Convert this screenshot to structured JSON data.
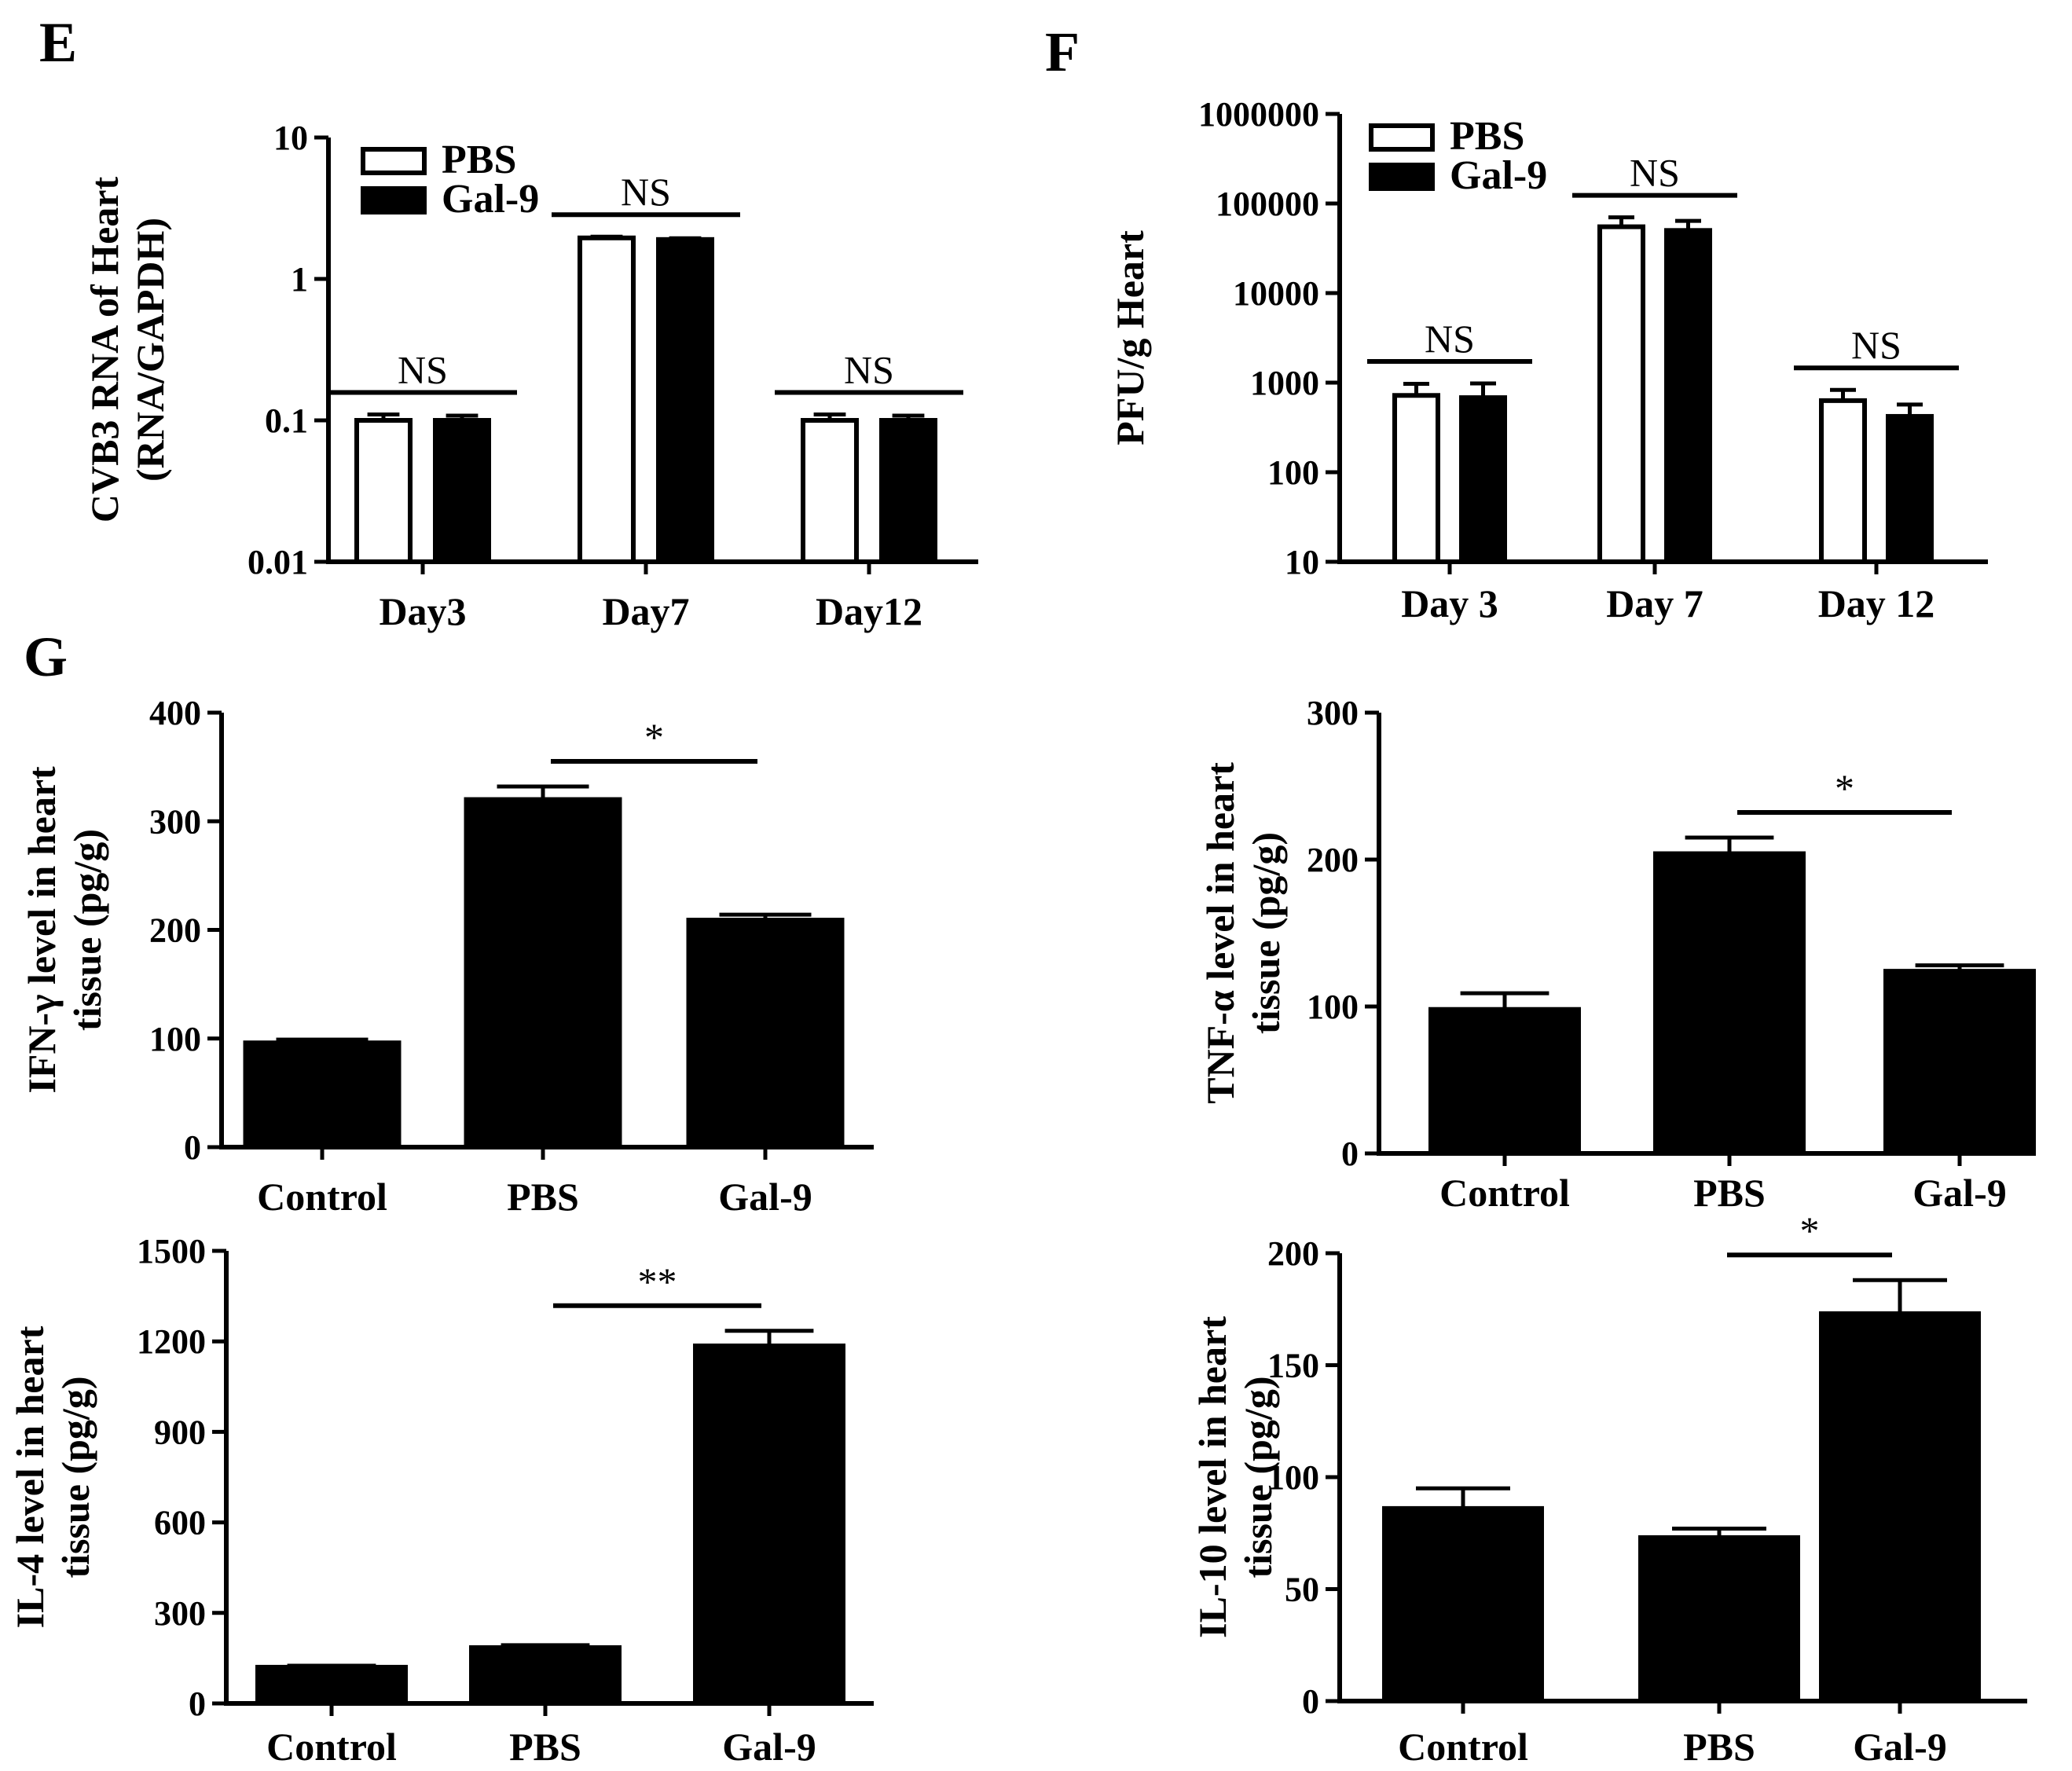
{
  "panel_labels": {
    "E": "E",
    "F": "F",
    "G": "G"
  },
  "chart_data": [
    {
      "id": "E",
      "type": "bar",
      "scale": "log",
      "ylabel_lines": [
        "CVB3 RNA of Heart",
        "(RNA/GAPDH)"
      ],
      "ylim": [
        0.01,
        10
      ],
      "yticks": [
        0.01,
        0.1,
        1,
        10
      ],
      "ytick_labels": [
        "0.01",
        "0.1",
        "1",
        "10"
      ],
      "categories": [
        "Day3",
        "Day7",
        "Day12"
      ],
      "series": [
        {
          "name": "PBS",
          "fill": "#ffffff",
          "values": [
            0.1,
            1.95,
            0.1
          ],
          "errors": [
            0.01,
            0.04,
            0.01
          ]
        },
        {
          "name": "Gal-9",
          "fill": "#000000",
          "values": [
            0.1,
            1.9,
            0.1
          ],
          "errors": [
            0.008,
            0.04,
            0.008
          ]
        }
      ],
      "significance": [
        {
          "label": "NS",
          "category": 0
        },
        {
          "label": "NS",
          "category": 1
        },
        {
          "label": "NS",
          "category": 2
        }
      ],
      "legend": [
        "PBS",
        "Gal-9"
      ]
    },
    {
      "id": "F",
      "type": "bar",
      "scale": "log",
      "ylabel_lines": [
        "PFU/g  Heart"
      ],
      "ylim": [
        10,
        1000000
      ],
      "yticks": [
        10,
        100,
        1000,
        10000,
        100000,
        1000000
      ],
      "ytick_labels": [
        "10",
        "100",
        "1000",
        "10000",
        "100000",
        "1000000"
      ],
      "categories": [
        "Day 3",
        "Day 7",
        "Day 12"
      ],
      "series": [
        {
          "name": "PBS",
          "fill": "#ffffff",
          "values": [
            720,
            55000,
            630
          ],
          "errors": [
            250,
            15000,
            200
          ]
        },
        {
          "name": "Gal-9",
          "fill": "#000000",
          "values": [
            680,
            50000,
            420
          ],
          "errors": [
            300,
            14000,
            150
          ]
        }
      ],
      "significance": [
        {
          "label": "NS",
          "category": 0
        },
        {
          "label": "NS",
          "category": 1
        },
        {
          "label": "NS",
          "category": 2
        }
      ],
      "legend": [
        "PBS",
        "Gal-9"
      ]
    },
    {
      "id": "G1",
      "type": "bar",
      "scale": "linear",
      "ylabel_lines": [
        "IFN-γ  level in heart",
        "tissue (pg/g)"
      ],
      "ylim": [
        0,
        400
      ],
      "yticks": [
        0,
        100,
        200,
        300,
        400
      ],
      "ytick_labels": [
        "0",
        "100",
        "200",
        "300",
        "400"
      ],
      "categories": [
        "Control",
        "PBS",
        "Gal-9"
      ],
      "series": [
        {
          "name": "",
          "fill": "#000000",
          "values": [
            96,
            320,
            209
          ],
          "errors": [
            3,
            12,
            5
          ]
        }
      ],
      "significance": [
        {
          "label": "*",
          "from": 1,
          "to": 2
        }
      ]
    },
    {
      "id": "G2",
      "type": "bar",
      "scale": "linear",
      "ylabel_lines": [
        "TNF-α  level in heart",
        "tissue (pg/g)"
      ],
      "ylim": [
        0,
        300
      ],
      "yticks": [
        0,
        100,
        200,
        300
      ],
      "ytick_labels": [
        "0",
        "100",
        "200",
        "300"
      ],
      "categories": [
        "Control",
        "PBS",
        "Gal-9"
      ],
      "series": [
        {
          "name": "",
          "fill": "#000000",
          "values": [
            98,
            204,
            124
          ],
          "errors": [
            11,
            11,
            4
          ]
        }
      ],
      "significance": [
        {
          "label": "*",
          "from": 1,
          "to": 2
        }
      ]
    },
    {
      "id": "G3",
      "type": "bar",
      "scale": "linear",
      "ylabel_lines": [
        "IL-4 level in heart",
        "tissue (pg/g)"
      ],
      "ylim": [
        0,
        1500
      ],
      "yticks": [
        0,
        300,
        600,
        900,
        1200,
        1500
      ],
      "ytick_labels": [
        "0",
        "300",
        "600",
        "900",
        "1200",
        "1500"
      ],
      "categories": [
        "Control",
        "PBS",
        "Gal-9"
      ],
      "series": [
        {
          "name": "",
          "fill": "#000000",
          "values": [
            120,
            185,
            1185
          ],
          "errors": [
            5,
            8,
            50
          ]
        }
      ],
      "significance": [
        {
          "label": "**",
          "from": 1,
          "to": 2
        }
      ]
    },
    {
      "id": "G4",
      "type": "bar",
      "scale": "linear",
      "ylabel_lines": [
        "IL-10 level in heart",
        "tissue (pg/g)"
      ],
      "ylim": [
        0,
        200
      ],
      "yticks": [
        0,
        50,
        100,
        150,
        200
      ],
      "ytick_labels": [
        "0",
        "50",
        "100",
        "150",
        "200"
      ],
      "categories": [
        "Control",
        "PBS",
        "Gal-9"
      ],
      "series": [
        {
          "name": "",
          "fill": "#000000",
          "values": [
            86,
            73,
            173
          ],
          "errors": [
            9,
            4,
            15
          ]
        }
      ],
      "significance": [
        {
          "label": "*",
          "from": 1,
          "to": 2
        }
      ]
    }
  ]
}
